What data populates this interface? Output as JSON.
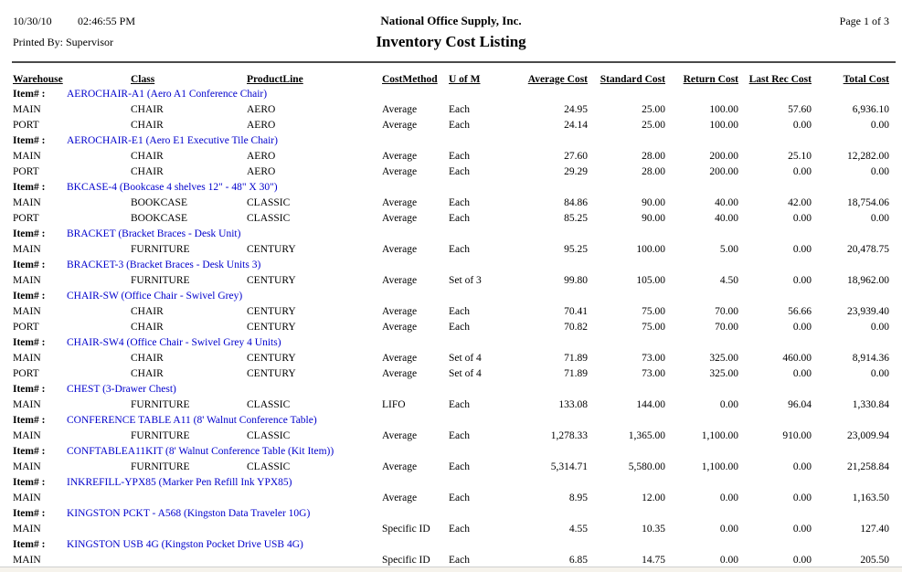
{
  "header": {
    "date": "10/30/10",
    "time": "02:46:55 PM",
    "printed_by": "Printed By: Supervisor",
    "company": "National Office Supply, Inc.",
    "title": "Inventory Cost Listing",
    "page": "Page 1 of 3"
  },
  "item_label": "Item# :",
  "columns": [
    "Warehouse",
    "Class",
    "ProductLine",
    "CostMethod",
    "U of M",
    "Average Cost",
    "Standard Cost",
    "Return Cost",
    "Last Rec Cost",
    "Total Cost"
  ],
  "link_color": "#0000cc",
  "groups": [
    {
      "item": "AEROCHAIR-A1 (Aero A1 Conference Chair)",
      "rows": [
        [
          "MAIN",
          "CHAIR",
          "AERO",
          "Average",
          "Each",
          "24.95",
          "25.00",
          "100.00",
          "57.60",
          "6,936.10"
        ],
        [
          "PORT",
          "CHAIR",
          "AERO",
          "Average",
          "Each",
          "24.14",
          "25.00",
          "100.00",
          "0.00",
          "0.00"
        ]
      ]
    },
    {
      "item": "AEROCHAIR-E1 (Aero E1 Executive Tile Chair)",
      "rows": [
        [
          "MAIN",
          "CHAIR",
          "AERO",
          "Average",
          "Each",
          "27.60",
          "28.00",
          "200.00",
          "25.10",
          "12,282.00"
        ],
        [
          "PORT",
          "CHAIR",
          "AERO",
          "Average",
          "Each",
          "29.29",
          "28.00",
          "200.00",
          "0.00",
          "0.00"
        ]
      ]
    },
    {
      "item": "BKCASE-4 (Bookcase 4 shelves 12\" - 48\" X 30\")",
      "rows": [
        [
          "MAIN",
          "BOOKCASE",
          "CLASSIC",
          "Average",
          "Each",
          "84.86",
          "90.00",
          "40.00",
          "42.00",
          "18,754.06"
        ],
        [
          "PORT",
          "BOOKCASE",
          "CLASSIC",
          "Average",
          "Each",
          "85.25",
          "90.00",
          "40.00",
          "0.00",
          "0.00"
        ]
      ]
    },
    {
      "item": "BRACKET (Bracket Braces - Desk Unit)",
      "rows": [
        [
          "MAIN",
          "FURNITURE",
          "CENTURY",
          "Average",
          "Each",
          "95.25",
          "100.00",
          "5.00",
          "0.00",
          "20,478.75"
        ]
      ]
    },
    {
      "item": "BRACKET-3 (Bracket Braces - Desk Units 3)",
      "rows": [
        [
          "MAIN",
          "FURNITURE",
          "CENTURY",
          "Average",
          "Set of 3",
          "99.80",
          "105.00",
          "4.50",
          "0.00",
          "18,962.00"
        ]
      ]
    },
    {
      "item": "CHAIR-SW (Office Chair - Swivel Grey)",
      "rows": [
        [
          "MAIN",
          "CHAIR",
          "CENTURY",
          "Average",
          "Each",
          "70.41",
          "75.00",
          "70.00",
          "56.66",
          "23,939.40"
        ],
        [
          "PORT",
          "CHAIR",
          "CENTURY",
          "Average",
          "Each",
          "70.82",
          "75.00",
          "70.00",
          "0.00",
          "0.00"
        ]
      ]
    },
    {
      "item": "CHAIR-SW4 (Office Chair - Swivel Grey 4 Units)",
      "rows": [
        [
          "MAIN",
          "CHAIR",
          "CENTURY",
          "Average",
          "Set of 4",
          "71.89",
          "73.00",
          "325.00",
          "460.00",
          "8,914.36"
        ],
        [
          "PORT",
          "CHAIR",
          "CENTURY",
          "Average",
          "Set of 4",
          "71.89",
          "73.00",
          "325.00",
          "0.00",
          "0.00"
        ]
      ]
    },
    {
      "item": "CHEST (3-Drawer Chest)",
      "rows": [
        [
          "MAIN",
          "FURNITURE",
          "CLASSIC",
          "LIFO",
          "Each",
          "133.08",
          "144.00",
          "0.00",
          "96.04",
          "1,330.84"
        ]
      ]
    },
    {
      "item": "CONFERENCE TABLE A11 (8' Walnut Conference Table)",
      "rows": [
        [
          "MAIN",
          "FURNITURE",
          "CLASSIC",
          "Average",
          "Each",
          "1,278.33",
          "1,365.00",
          "1,100.00",
          "910.00",
          "23,009.94"
        ]
      ]
    },
    {
      "item": "CONFTABLEA11KIT (8' Walnut Conference Table (Kit Item))",
      "rows": [
        [
          "MAIN",
          "FURNITURE",
          "CLASSIC",
          "Average",
          "Each",
          "5,314.71",
          "5,580.00",
          "1,100.00",
          "0.00",
          "21,258.84"
        ]
      ]
    },
    {
      "item": "INKREFILL-YPX85 (Marker Pen Refill Ink YPX85)",
      "rows": [
        [
          "MAIN",
          "",
          "",
          "Average",
          "Each",
          "8.95",
          "12.00",
          "0.00",
          "0.00",
          "1,163.50"
        ]
      ]
    },
    {
      "item": "KINGSTON PCKT - A568 (Kingston Data Traveler 10G)",
      "rows": [
        [
          "MAIN",
          "",
          "",
          "Specific ID",
          "Each",
          "4.55",
          "10.35",
          "0.00",
          "0.00",
          "127.40"
        ]
      ]
    },
    {
      "item": "KINGSTON USB 4G (Kingston Pocket Drive USB 4G)",
      "rows": [
        [
          "MAIN",
          "",
          "",
          "Specific ID",
          "Each",
          "6.85",
          "14.75",
          "0.00",
          "0.00",
          "205.50"
        ]
      ]
    }
  ]
}
